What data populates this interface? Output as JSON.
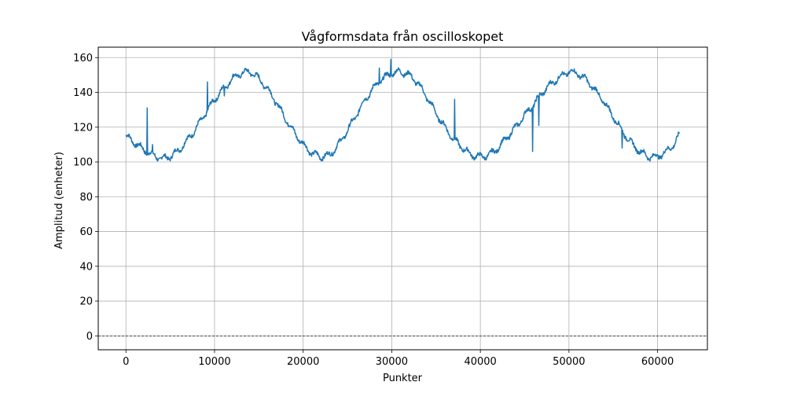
{
  "chart_data": {
    "type": "line",
    "title": "Vågformsdata från oscilloskopet",
    "xlabel": "Punkter",
    "ylabel": "Amplitud (enheter)",
    "xlim": [
      -3125,
      65625
    ],
    "ylim": [
      -8,
      166
    ],
    "xticks": [
      0,
      10000,
      20000,
      30000,
      40000,
      50000,
      60000
    ],
    "yticks": [
      0,
      20,
      40,
      60,
      80,
      100,
      120,
      140,
      160
    ],
    "grid": true,
    "reference_line": {
      "y": 0,
      "style": "dashed",
      "color": "#000000"
    },
    "series": [
      {
        "color": "#1f77b4",
        "x": [
          0,
          1000,
          2000,
          3000,
          4000,
          5000,
          6000,
          7000,
          8000,
          9000,
          10000,
          11000,
          12000,
          13000,
          14000,
          15000,
          16000,
          17000,
          18000,
          19000,
          20000,
          21000,
          22000,
          23000,
          24000,
          25000,
          26000,
          27000,
          28000,
          29000,
          30000,
          31000,
          32000,
          33000,
          34000,
          35000,
          36000,
          37000,
          38000,
          39000,
          40000,
          41000,
          42000,
          43000,
          44000,
          45000,
          46000,
          47000,
          48000,
          49000,
          50000,
          51000,
          52000,
          53000,
          54000,
          55000,
          56000,
          57000,
          58000,
          59000,
          60000,
          61000,
          62000,
          62500
        ],
        "y": [
          115,
          111,
          107,
          104,
          102,
          103,
          107,
          113,
          120,
          128,
          136,
          142,
          148,
          151,
          152,
          148,
          142,
          134,
          125,
          117,
          110,
          105,
          103,
          104,
          110,
          118,
          127,
          136,
          143,
          148,
          151,
          152,
          150,
          145,
          137,
          128,
          120,
          113,
          108,
          104,
          103,
          104,
          108,
          114,
          120,
          127,
          133,
          140,
          145,
          149,
          152,
          151,
          147,
          141,
          134,
          126,
          118,
          111,
          106,
          103,
          103,
          106,
          111,
          116
        ]
      }
    ],
    "spikes": [
      {
        "x": 2400,
        "y": 131
      },
      {
        "x": 3000,
        "y": 110
      },
      {
        "x": 9200,
        "y": 146
      },
      {
        "x": 11100,
        "y": 138
      },
      {
        "x": 28600,
        "y": 154
      },
      {
        "x": 29900,
        "y": 159
      },
      {
        "x": 37100,
        "y": 136
      },
      {
        "x": 45900,
        "y": 106
      },
      {
        "x": 46600,
        "y": 121
      },
      {
        "x": 56000,
        "y": 108
      }
    ]
  }
}
